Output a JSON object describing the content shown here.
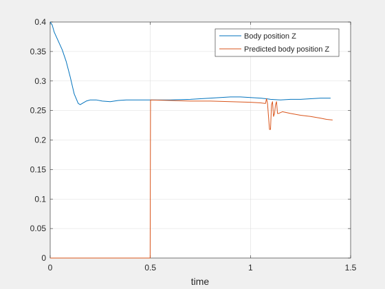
{
  "chart_data": {
    "type": "line",
    "title": "",
    "xlabel": "time",
    "ylabel": "",
    "xlim": [
      0,
      1.5
    ],
    "ylim": [
      0,
      0.4
    ],
    "xticks": [
      0,
      0.5,
      1,
      1.5
    ],
    "xtick_labels": [
      "0",
      "0.5",
      "1",
      "1.5"
    ],
    "yticks": [
      0,
      0.05,
      0.1,
      0.15,
      0.2,
      0.25,
      0.3,
      0.35,
      0.4
    ],
    "ytick_labels": [
      "0",
      "0.05",
      "0.1",
      "0.15",
      "0.2",
      "0.25",
      "0.3",
      "0.35",
      "0.4"
    ],
    "grid": true,
    "legend": "top-right",
    "series": [
      {
        "name": "Body position Z",
        "color": "#0072bd",
        "x": [
          0,
          0.01,
          0.02,
          0.04,
          0.06,
          0.08,
          0.1,
          0.12,
          0.14,
          0.15,
          0.16,
          0.18,
          0.2,
          0.23,
          0.26,
          0.3,
          0.34,
          0.38,
          0.42,
          0.46,
          0.5,
          0.6,
          0.7,
          0.8,
          0.9,
          0.95,
          1.0,
          1.05,
          1.08,
          1.1,
          1.15,
          1.2,
          1.25,
          1.3,
          1.35,
          1.4
        ],
        "y": [
          0.4,
          0.395,
          0.383,
          0.368,
          0.353,
          0.333,
          0.307,
          0.278,
          0.262,
          0.26,
          0.262,
          0.266,
          0.268,
          0.268,
          0.266,
          0.265,
          0.267,
          0.268,
          0.268,
          0.268,
          0.268,
          0.268,
          0.269,
          0.271,
          0.273,
          0.273,
          0.272,
          0.271,
          0.27,
          0.269,
          0.268,
          0.269,
          0.269,
          0.27,
          0.271,
          0.271
        ]
      },
      {
        "name": "Predicted body position Z",
        "color": "#d95319",
        "x": [
          0,
          0.499,
          0.501,
          0.6,
          0.7,
          0.8,
          0.9,
          1.0,
          1.05,
          1.075,
          1.08,
          1.085,
          1.09,
          1.095,
          1.1,
          1.105,
          1.11,
          1.115,
          1.12,
          1.125,
          1.13,
          1.135,
          1.14,
          1.16,
          1.2,
          1.25,
          1.3,
          1.35,
          1.38,
          1.41
        ],
        "y": [
          0,
          0,
          0.268,
          0.267,
          0.266,
          0.266,
          0.265,
          0.264,
          0.263,
          0.262,
          0.27,
          0.262,
          0.24,
          0.218,
          0.218,
          0.26,
          0.265,
          0.24,
          0.245,
          0.26,
          0.265,
          0.245,
          0.245,
          0.248,
          0.245,
          0.242,
          0.24,
          0.237,
          0.235,
          0.234
        ]
      }
    ]
  }
}
